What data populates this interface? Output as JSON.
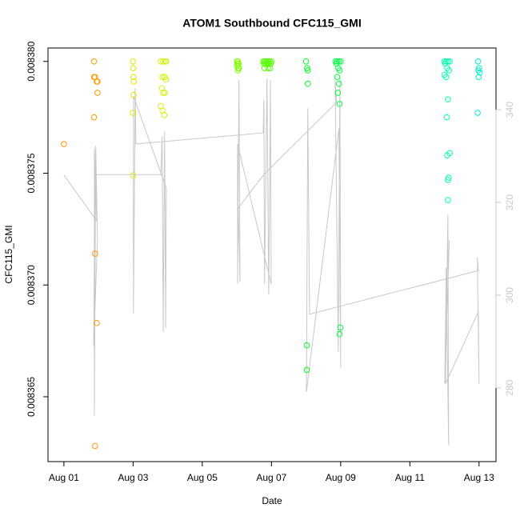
{
  "chart_data": {
    "type": "scatter",
    "title": "ATOM1 Southbound CFC115_GMI",
    "x_label": "Date",
    "y_label": "CFC115_GMI",
    "xlim": [
      -0.46,
      12.49
    ],
    "xticks": [
      {
        "value": 0,
        "label": "Aug 01"
      },
      {
        "value": 2,
        "label": "Aug 03"
      },
      {
        "value": 4,
        "label": "Aug 05"
      },
      {
        "value": 6,
        "label": "Aug 07"
      },
      {
        "value": 8,
        "label": "Aug 09"
      },
      {
        "value": 10,
        "label": "Aug 11"
      },
      {
        "value": 12,
        "label": "Aug 13"
      }
    ],
    "ylim": [
      0.0083621,
      0.0083806
    ],
    "yticks": [
      0.008365,
      {
        "value": 0.00837,
        "label": "0.008370"
      },
      0.008375,
      {
        "value": 0.00838,
        "label": "0.008380"
      }
    ],
    "y2lim": [
      264.1,
      353.3
    ],
    "y2ticks": [
      280,
      300,
      320,
      340
    ],
    "y2_color": "#c8c8c8",
    "grid": false,
    "series": [
      {
        "color": "#ff9900",
        "x": [
          0,
          0.87,
          0.87,
          0.9,
          0.95,
          0.97,
          0.97,
          0.87,
          0.9,
          0.95,
          0.9
        ],
        "values": [
          0.0083763,
          0.00838,
          0.0083793,
          0.0083793,
          0.0083791,
          0.0083791,
          0.0083786,
          0.0083775,
          0.0083714,
          0.0083683,
          0.0083628
        ]
      },
      {
        "color": "#e6e600",
        "x": [
          2.0,
          2.0,
          2.01,
          2.02,
          2.01,
          1.99,
          2.0
        ],
        "values": [
          0.00838,
          0.0083797,
          0.0083793,
          0.0083791,
          0.0083785,
          0.0083777,
          0.0083749
        ]
      },
      {
        "color": "#d4f20a",
        "x": [
          2.8,
          2.87,
          2.93,
          2.96,
          2.85,
          2.91,
          2.95,
          2.83,
          2.92,
          2.87,
          2.8,
          2.85,
          2.9
        ],
        "values": [
          0.00838,
          0.00838,
          0.00838,
          0.00838,
          0.0083793,
          0.0083793,
          0.0083792,
          0.0083788,
          0.0083786,
          0.0083786,
          0.008378,
          0.0083778,
          0.0083776
        ]
      },
      {
        "color": "#80ff00",
        "x": [
          5.0,
          5.03,
          5.05,
          5.02,
          5.0,
          5.04,
          5.06,
          5.03
        ],
        "values": [
          0.00838,
          0.00838,
          0.0083799,
          0.0083799,
          0.0083798,
          0.0083797,
          0.0083797,
          0.0083796
        ]
      },
      {
        "color": "#55ff00",
        "x": [
          5.76,
          5.8,
          5.85,
          5.9,
          5.95,
          6.0,
          5.78,
          5.83,
          5.88,
          5.93,
          5.98,
          5.8,
          5.9,
          5.96
        ],
        "values": [
          0.00838,
          0.00838,
          0.00838,
          0.00838,
          0.00838,
          0.00838,
          0.0083799,
          0.0083799,
          0.0083799,
          0.0083799,
          0.0083799,
          0.0083797,
          0.0083797,
          0.0083797
        ]
      },
      {
        "color": "#00ff22",
        "x": [
          7.0,
          7.05,
          7.03,
          7.05,
          7.02,
          7.02
        ],
        "values": [
          0.00838,
          0.0083796,
          0.0083797,
          0.008379,
          0.0083673,
          0.0083662
        ]
      },
      {
        "color": "#00ff40",
        "x": [
          7.85,
          7.9,
          7.95,
          8.0,
          7.88,
          7.93,
          7.97,
          7.9,
          7.95,
          7.92,
          7.97,
          7.99,
          7.97
        ],
        "values": [
          0.00838,
          0.00838,
          0.00838,
          0.00838,
          0.0083799,
          0.0083797,
          0.0083796,
          0.0083793,
          0.008379,
          0.0083786,
          0.0083781,
          0.0083681,
          0.0083678
        ]
      },
      {
        "color": "#00ffb0",
        "x": [
          11.0,
          11.05,
          11.1,
          11.15,
          11.02,
          11.08,
          11.13,
          11.0,
          11.05,
          11.1,
          11.07,
          11.15,
          11.08,
          11.12,
          11.1,
          11.1
        ],
        "values": [
          0.00838,
          0.00838,
          0.00838,
          0.00838,
          0.0083799,
          0.0083797,
          0.0083796,
          0.0083794,
          0.0083793,
          0.0083783,
          0.0083775,
          0.0083759,
          0.0083758,
          0.0083748,
          0.0083747,
          0.0083738
        ]
      },
      {
        "color": "#00f0c8",
        "x": [
          11.97,
          12.0,
          11.98,
          12.02,
          11.99,
          11.96
        ],
        "values": [
          0.00838,
          0.0083797,
          0.0083796,
          0.0083795,
          0.0083793,
          0.0083777
        ]
      },
      {
        "color": "#c8c8c8",
        "axis": "y2",
        "x": [
          0,
          0.95,
          0.88,
          0.88,
          0.92,
          0.97,
          0.86,
          0.9,
          2.8,
          2.84,
          2.87,
          2.91,
          2.94,
          2.96,
          2.01,
          2.01,
          2.06,
          2.08,
          5.76,
          5.78,
          5.8,
          5.87,
          5.92,
          5.97,
          5.99,
          5.02,
          5.02,
          5.06,
          5.09,
          5.04,
          5.78,
          7.88,
          7.84,
          7.93,
          7.98,
          8.0,
          7.95,
          7.01,
          7.05,
          7.1,
          11.98,
          11.95,
          12.0,
          11.98,
          11.03,
          11.1,
          11.12,
          11.05,
          11.01,
          11.14
        ],
        "values": [
          325.9,
          316.0,
          331.7,
          274.0,
          332.2,
          311.9,
          289.0,
          326.0,
          326.0,
          334.3,
          292.1,
          335.2,
          292.9,
          323.1,
          342.9,
          296.0,
          344.7,
          332.6,
          335.0,
          342.1,
          302.4,
          346.7,
          300.2,
          346.4,
          302.4,
          332.6,
          302.4,
          346.4,
          302.9,
          318.8,
          326.0,
          341.6,
          346.4,
          287.8,
          347.2,
          284.3,
          336.0,
          279.1,
          340.3,
          295.9,
          305.3,
          308.1,
          280.9,
          296.4,
          280.9,
          317.4,
          267.6,
          305.9,
          280.9,
          311.9
        ]
      }
    ]
  }
}
